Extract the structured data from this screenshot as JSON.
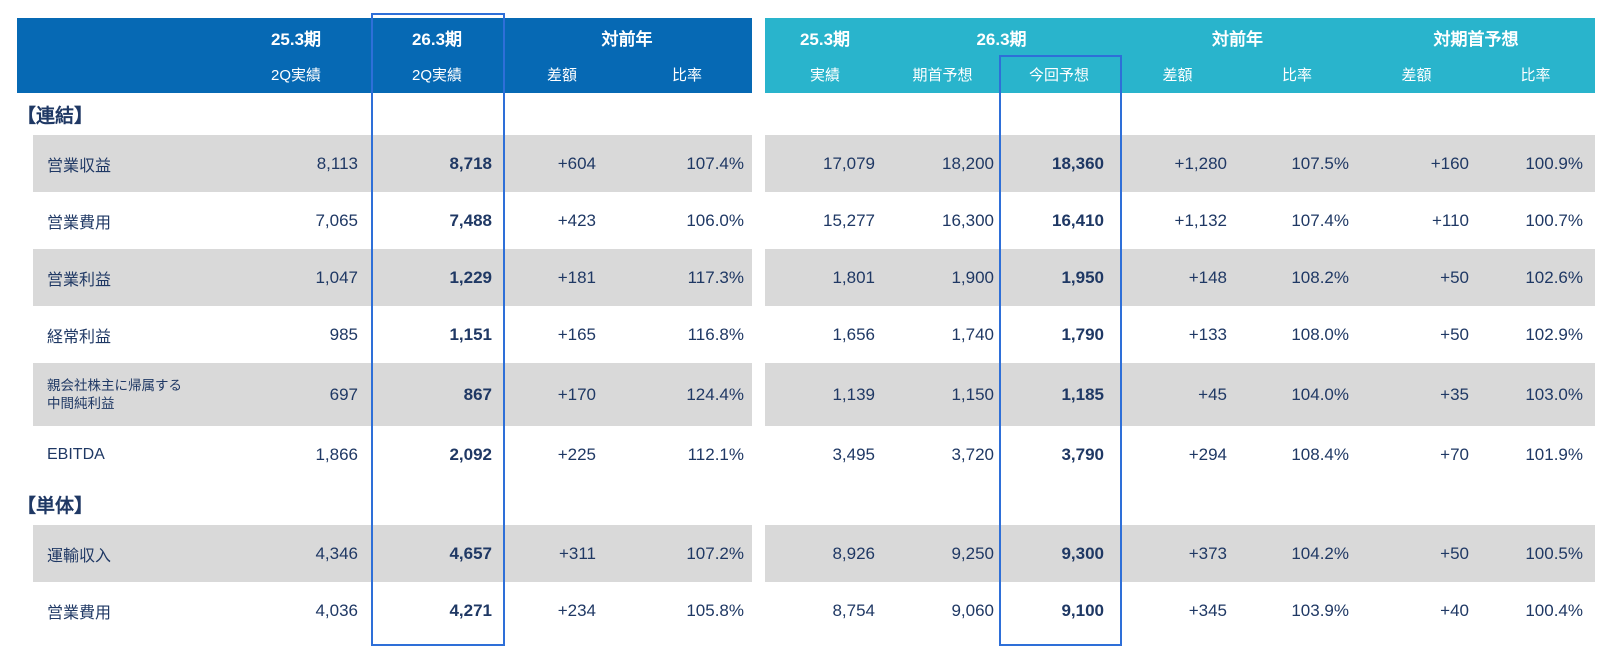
{
  "colors": {
    "header_blue": "#0669b4",
    "header_cyan": "#29b4cc",
    "row_stripe": "#d9d9d9",
    "text_navy": "#1f3864",
    "highlight_border": "#2e6fd8"
  },
  "left_table": {
    "header": {
      "col1_top": "25.3期",
      "col1_sub": "2Q実績",
      "col2_top": "26.3期",
      "col2_sub": "2Q実績",
      "group_vs_prev": "対前年",
      "diff_sub": "差額",
      "ratio_sub": "比率"
    }
  },
  "right_table": {
    "header": {
      "col1_top": "25.3期",
      "col1_sub": "実績",
      "group_curr": "26.3期",
      "curr_sub1": "期首予想",
      "curr_sub2": "今回予想",
      "group_vs_prev": "対前年",
      "vs_prev_diff": "差額",
      "vs_prev_ratio": "比率",
      "group_vs_initial": "対期首予想",
      "vs_initial_diff": "差額",
      "vs_initial_ratio": "比率"
    }
  },
  "rows": [
    {
      "type": "section",
      "label": "【連結】"
    },
    {
      "type": "data",
      "shaded": true,
      "label": "営業収益",
      "left": [
        "8,113",
        "8,718",
        "+604",
        "107.4%"
      ],
      "right": [
        "17,079",
        "18,200",
        "18,360",
        "+1,280",
        "107.5%",
        "+160",
        "100.9%"
      ]
    },
    {
      "type": "data",
      "shaded": false,
      "label": "営業費用",
      "left": [
        "7,065",
        "7,488",
        "+423",
        "106.0%"
      ],
      "right": [
        "15,277",
        "16,300",
        "16,410",
        "+1,132",
        "107.4%",
        "+110",
        "100.7%"
      ]
    },
    {
      "type": "data",
      "shaded": true,
      "label": "営業利益",
      "left": [
        "1,047",
        "1,229",
        "+181",
        "117.3%"
      ],
      "right": [
        "1,801",
        "1,900",
        "1,950",
        "+148",
        "108.2%",
        "+50",
        "102.6%"
      ]
    },
    {
      "type": "data",
      "shaded": false,
      "label": "経常利益",
      "left": [
        "985",
        "1,151",
        "+165",
        "116.8%"
      ],
      "right": [
        "1,656",
        "1,740",
        "1,790",
        "+133",
        "108.0%",
        "+50",
        "102.9%"
      ]
    },
    {
      "type": "data",
      "shaded": true,
      "label": "親会社株主に帰属する",
      "label2": "中間純利益",
      "two_line": true,
      "left": [
        "697",
        "867",
        "+170",
        "124.4%"
      ],
      "right": [
        "1,139",
        "1,150",
        "1,185",
        "+45",
        "104.0%",
        "+35",
        "103.0%"
      ]
    },
    {
      "type": "data",
      "shaded": false,
      "label": "EBITDA",
      "left": [
        "1,866",
        "2,092",
        "+225",
        "112.1%"
      ],
      "right": [
        "3,495",
        "3,720",
        "3,790",
        "+294",
        "108.4%",
        "+70",
        "101.9%"
      ]
    },
    {
      "type": "section",
      "label": "【単体】"
    },
    {
      "type": "data",
      "shaded": true,
      "label": "運輸収入",
      "left": [
        "4,346",
        "4,657",
        "+311",
        "107.2%"
      ],
      "right": [
        "8,926",
        "9,250",
        "9,300",
        "+373",
        "104.2%",
        "+50",
        "100.5%"
      ]
    },
    {
      "type": "data",
      "shaded": false,
      "label": "営業費用",
      "left": [
        "4,036",
        "4,271",
        "+234",
        "105.8%"
      ],
      "right": [
        "8,754",
        "9,060",
        "9,100",
        "+345",
        "103.9%",
        "+40",
        "100.4%"
      ]
    }
  ]
}
